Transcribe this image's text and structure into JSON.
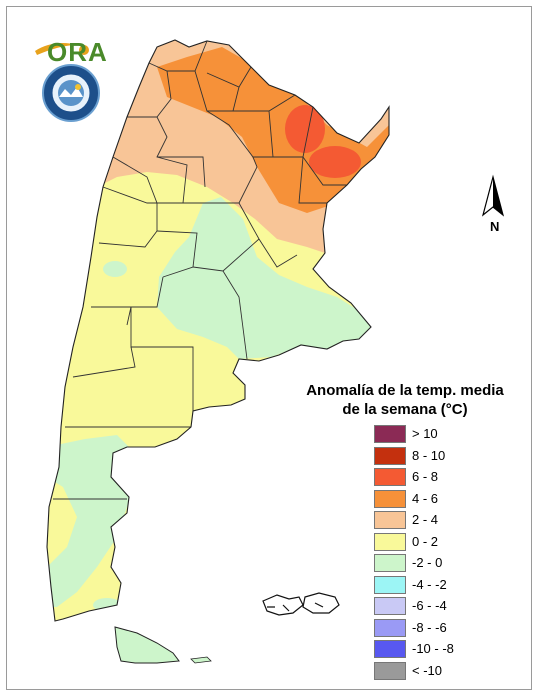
{
  "logo": {
    "text": "ORA"
  },
  "compass": {
    "label": "N"
  },
  "legend": {
    "title_line1": "Anomalía de la temp. media",
    "title_line2": "de la semana (°C)",
    "items": [
      {
        "label": "> 10",
        "color": "#8b2a55"
      },
      {
        "label": "8 - 10",
        "color": "#c4300e"
      },
      {
        "label": "6 - 8",
        "color": "#f45a33"
      },
      {
        "label": "4 - 6",
        "color": "#f69139"
      },
      {
        "label": "2 - 4",
        "color": "#f8c597"
      },
      {
        "label": "0 - 2",
        "color": "#f9f99a"
      },
      {
        "label": "-2 - 0",
        "color": "#cdf5cb"
      },
      {
        "label": "-4 - -2",
        "color": "#9cf5f5"
      },
      {
        "label": "-6 - -4",
        "color": "#c9c9f5"
      },
      {
        "label": "-8 - -6",
        "color": "#9a9af5"
      },
      {
        "label": "-10 - -8",
        "color": "#5858f0"
      },
      {
        "label": "< -10",
        "color": "#9a9a9a"
      }
    ]
  }
}
